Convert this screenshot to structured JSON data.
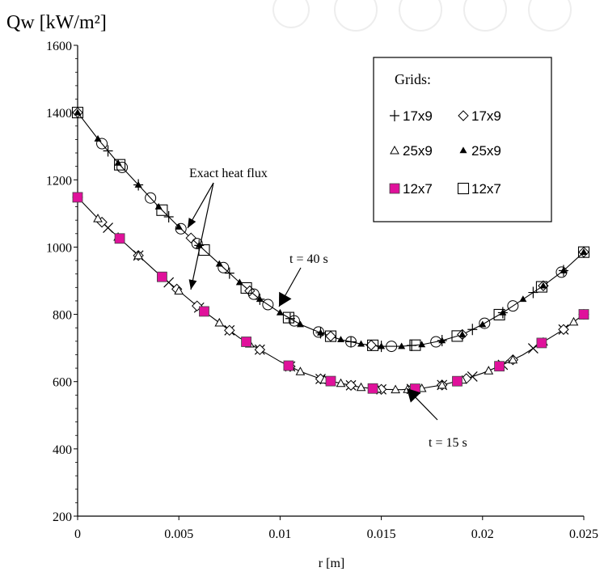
{
  "chart_data": {
    "type": "scatter",
    "title": "",
    "xlabel": "r [m]",
    "ylabel": "Qw [kW/m²]",
    "xlim": [
      0,
      0.025
    ],
    "ylim": [
      200,
      1600
    ],
    "x_ticks": [
      0,
      0.005,
      0.01,
      0.015,
      0.02,
      0.025
    ],
    "x_tick_labels": [
      "0",
      "0.005",
      "0.01",
      "0.015",
      "0.02",
      "0.025"
    ],
    "y_ticks": [
      200,
      400,
      600,
      800,
      1000,
      1200,
      1400,
      1600
    ],
    "y_tick_labels": [
      "200",
      "400",
      "600",
      "800",
      "1000",
      "1200",
      "1400",
      "1600"
    ],
    "grid": false,
    "legend": {
      "title": "Grids:",
      "placement": "top-right",
      "entries": [
        {
          "label": "17x9",
          "marker": "plus"
        },
        {
          "label": "17x9",
          "marker": "diamond"
        },
        {
          "label": "25x9",
          "marker": "triangle-open"
        },
        {
          "label": "25x9",
          "marker": "triangle-filled"
        },
        {
          "label": "12x7",
          "marker": "square-magenta"
        },
        {
          "label": "12x7",
          "marker": "square-open"
        }
      ]
    },
    "annotations": [
      {
        "text": "Exact heat flux"
      },
      {
        "text": "t = 40 s"
      },
      {
        "text": "t = 15 s"
      }
    ],
    "exact_curves": [
      {
        "name": "t = 40 s",
        "x": [
          0,
          0.001,
          0.002,
          0.003,
          0.004,
          0.005,
          0.006,
          0.007,
          0.008,
          0.009,
          0.01,
          0.011,
          0.012,
          0.013,
          0.014,
          0.015,
          0.016,
          0.017,
          0.018,
          0.019,
          0.02,
          0.021,
          0.022,
          0.023,
          0.024,
          0.025
        ],
        "y": [
          1400,
          1322,
          1250,
          1185,
          1120,
          1060,
          1005,
          950,
          895,
          845,
          805,
          770,
          745,
          725,
          712,
          705,
          705,
          710,
          722,
          740,
          770,
          805,
          845,
          885,
          930,
          985
        ]
      },
      {
        "name": "t = 15 s",
        "x": [
          0,
          0.001,
          0.002,
          0.003,
          0.004,
          0.005,
          0.006,
          0.007,
          0.008,
          0.009,
          0.01,
          0.011,
          0.012,
          0.013,
          0.014,
          0.015,
          0.016,
          0.017,
          0.018,
          0.019,
          0.02,
          0.021,
          0.022,
          0.023,
          0.024,
          0.025
        ],
        "y": [
          1148,
          1085,
          1030,
          975,
          920,
          870,
          820,
          775,
          730,
          695,
          660,
          630,
          608,
          595,
          583,
          577,
          576,
          580,
          590,
          605,
          625,
          650,
          680,
          718,
          755,
          800
        ]
      }
    ],
    "series": [
      {
        "name": "17x9",
        "marker": "plus",
        "curve": "t = 40 s",
        "x": [
          0,
          0.0015,
          0.003,
          0.0045,
          0.006,
          0.0075,
          0.009,
          0.0105,
          0.012,
          0.0135,
          0.015,
          0.0165,
          0.018,
          0.0195,
          0.021,
          0.0225,
          0.024,
          0.025
        ]
      },
      {
        "name": "17x9",
        "marker": "plus",
        "curve": "t = 15 s",
        "x": [
          0,
          0.0015,
          0.003,
          0.0045,
          0.006,
          0.0075,
          0.009,
          0.0105,
          0.012,
          0.0135,
          0.015,
          0.0165,
          0.018,
          0.0195,
          0.021,
          0.0225,
          0.024,
          0.025
        ]
      },
      {
        "name": "17x9",
        "marker": "diamond",
        "curve": "t = 40 s",
        "x": [
          0,
          0.0056,
          0.0085,
          0.0125,
          0.0145,
          0.019,
          0.023,
          0.025
        ]
      },
      {
        "name": "17x9",
        "marker": "diamond",
        "curve": "t = 15 s",
        "x": [
          0,
          0.0012,
          0.003,
          0.0049,
          0.0059,
          0.0075,
          0.009,
          0.0105,
          0.012,
          0.0135,
          0.015,
          0.0165,
          0.018,
          0.0192,
          0.0215,
          0.024,
          0.025
        ]
      },
      {
        "name": "25x9",
        "marker": "triangle-open",
        "curve": "t = 15 s",
        "x": [
          0,
          0.001,
          0.002,
          0.003,
          0.005,
          0.007,
          0.0085,
          0.0105,
          0.011,
          0.0122,
          0.013,
          0.014,
          0.0148,
          0.0157,
          0.0163,
          0.017,
          0.018,
          0.019,
          0.0203,
          0.0215,
          0.023,
          0.0245,
          0.025
        ]
      },
      {
        "name": "25x9",
        "marker": "triangle-filled",
        "curve": "t = 40 s",
        "x": [
          0,
          0.001,
          0.002,
          0.003,
          0.004,
          0.005,
          0.006,
          0.007,
          0.008,
          0.009,
          0.01,
          0.011,
          0.012,
          0.013,
          0.014,
          0.015,
          0.016,
          0.017,
          0.018,
          0.019,
          0.02,
          0.021,
          0.022,
          0.023,
          0.024,
          0.025
        ]
      },
      {
        "name": "12x7",
        "marker": "square-magenta",
        "curve": "t = 15 s",
        "x": [
          0,
          0.00208,
          0.00417,
          0.00625,
          0.00833,
          0.01042,
          0.0125,
          0.01458,
          0.01667,
          0.01875,
          0.02083,
          0.02292,
          0.025
        ]
      },
      {
        "name": "12x7",
        "marker": "square-open",
        "curve": "t = 40 s",
        "x": [
          0,
          0.00208,
          0.00417,
          0.00625,
          0.00833,
          0.01042,
          0.0125,
          0.01458,
          0.01667,
          0.01875,
          0.02083,
          0.02292,
          0.025
        ]
      },
      {
        "name": "circle",
        "marker": "circle",
        "curve": "t = 40 s",
        "x": [
          0.0012,
          0.0022,
          0.0036,
          0.0051,
          0.0059,
          0.0072,
          0.0087,
          0.0094,
          0.0107,
          0.0119,
          0.0135,
          0.0155,
          0.0177,
          0.0201,
          0.0215,
          0.0239
        ]
      }
    ],
    "colors": {
      "magenta": "#e0119b",
      "axis": "#000000"
    }
  }
}
